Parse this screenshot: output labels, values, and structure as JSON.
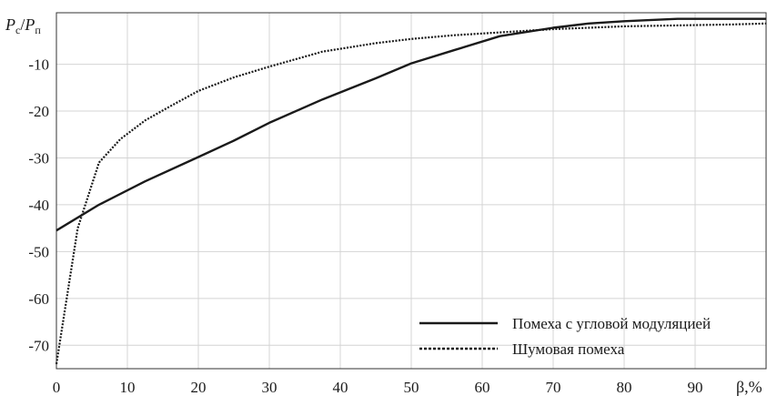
{
  "chart_data": {
    "type": "line",
    "title": "",
    "ylabel": {
      "P1": "P",
      "s1": "c",
      "slash": "/",
      "P2": "P",
      "s2": "п"
    },
    "xlabel": "β,%",
    "xlim": [
      0,
      100
    ],
    "ylim": [
      -75,
      1
    ],
    "xticks": [
      0,
      10,
      20,
      30,
      40,
      50,
      60,
      70,
      80,
      90
    ],
    "yticks": [
      -10,
      -20,
      -30,
      -40,
      -50,
      -60,
      -70
    ],
    "grid": true,
    "legend_position": "bottom-right",
    "series": [
      {
        "name": "Помеха с угловой модуляцией",
        "style": "solid",
        "color": "#1a1a1a",
        "x": [
          0,
          6,
          12.5,
          20,
          25,
          30,
          37.5,
          45,
          50,
          56,
          62.5,
          70,
          75,
          80,
          87.5,
          95,
          100
        ],
        "y": [
          -45.5,
          -40,
          -35,
          -29.8,
          -26.3,
          -22.5,
          -17.5,
          -13,
          -9.8,
          -7,
          -4,
          -2.2,
          -1.3,
          -0.8,
          -0.3,
          -0.3,
          -0.3
        ]
      },
      {
        "name": "Шумовая помеха",
        "style": "dotted",
        "color": "#1a1a1a",
        "x": [
          0,
          3,
          6,
          9,
          12.5,
          16,
          20,
          25,
          30,
          37.5,
          45,
          50,
          56,
          62.5,
          70,
          75,
          80,
          87.5,
          95,
          100
        ],
        "y": [
          -74,
          -45,
          -31,
          -26,
          -22,
          -19,
          -15.7,
          -12.8,
          -10.5,
          -7.3,
          -5.5,
          -4.6,
          -3.8,
          -3.2,
          -2.5,
          -2.2,
          -1.9,
          -1.7,
          -1.5,
          -1.3
        ]
      }
    ],
    "legend": [
      {
        "label": "Помеха с угловой модуляцией",
        "style": "solid"
      },
      {
        "label": "Шумовая помеха",
        "style": "dotted"
      }
    ]
  }
}
